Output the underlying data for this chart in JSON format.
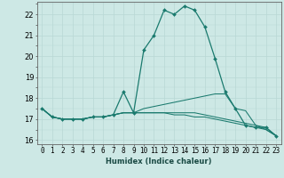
{
  "xlabel": "Humidex (Indice chaleur)",
  "background_color": "#cde8e5",
  "grid_color": "#b8d8d5",
  "line_color": "#1a7a6e",
  "xlim": [
    -0.5,
    23.5
  ],
  "ylim": [
    15.8,
    22.6
  ],
  "yticks": [
    16,
    17,
    18,
    19,
    20,
    21,
    22
  ],
  "xticks": [
    0,
    1,
    2,
    3,
    4,
    5,
    6,
    7,
    8,
    9,
    10,
    11,
    12,
    13,
    14,
    15,
    16,
    17,
    18,
    19,
    20,
    21,
    22,
    23
  ],
  "series": [
    [
      17.5,
      17.1,
      17.0,
      17.0,
      17.0,
      17.1,
      17.1,
      17.2,
      18.3,
      17.3,
      20.3,
      21.0,
      22.2,
      22.0,
      22.4,
      22.2,
      21.4,
      19.9,
      18.3,
      17.5,
      16.7,
      16.6,
      16.6,
      16.2
    ],
    [
      17.5,
      17.1,
      17.0,
      17.0,
      17.0,
      17.1,
      17.1,
      17.2,
      17.3,
      17.3,
      17.5,
      17.6,
      17.7,
      17.8,
      17.9,
      18.0,
      18.1,
      18.2,
      18.2,
      17.5,
      17.4,
      16.7,
      16.6,
      16.2
    ],
    [
      17.5,
      17.1,
      17.0,
      17.0,
      17.0,
      17.1,
      17.1,
      17.2,
      17.3,
      17.3,
      17.3,
      17.3,
      17.3,
      17.3,
      17.3,
      17.3,
      17.2,
      17.1,
      17.0,
      16.9,
      16.8,
      16.7,
      16.5,
      16.2
    ],
    [
      17.5,
      17.1,
      17.0,
      17.0,
      17.0,
      17.1,
      17.1,
      17.2,
      17.3,
      17.3,
      17.3,
      17.3,
      17.3,
      17.2,
      17.2,
      17.1,
      17.1,
      17.0,
      16.9,
      16.8,
      16.7,
      16.6,
      16.5,
      16.2
    ]
  ],
  "tick_fontsize": 5.5,
  "xlabel_fontsize": 6.0
}
